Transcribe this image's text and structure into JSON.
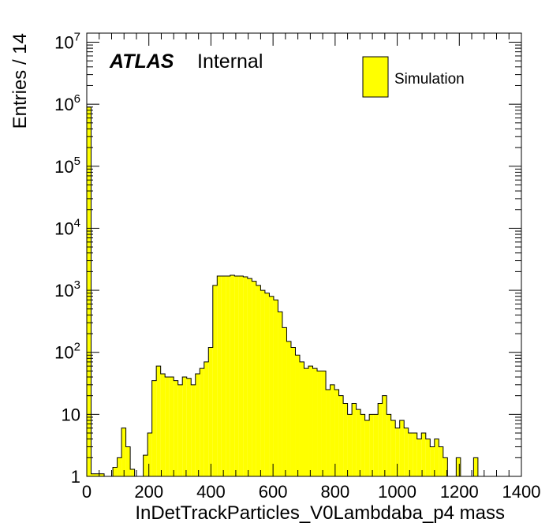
{
  "chart_data": {
    "type": "bar",
    "title": "",
    "xlabel": "InDetTrackParticles_V0Lambdaba_p4 mass",
    "ylabel": "Entries / 14",
    "xlim": [
      0,
      1400
    ],
    "ylim": [
      1,
      14000000
    ],
    "log_y": true,
    "grid": false,
    "legend_position": "top-right",
    "label_atlas": "ATLAS",
    "label_internal": "Internal",
    "bin_width": 14,
    "x_ticks": [
      "0",
      "200",
      "400",
      "600",
      "800",
      "1000",
      "1200",
      "1400"
    ],
    "x_tick_values": [
      0,
      200,
      400,
      600,
      800,
      1000,
      1200,
      1400
    ],
    "y_ticks": [
      {
        "value": 1,
        "base": "1",
        "exp": ""
      },
      {
        "value": 10,
        "base": "10",
        "exp": ""
      },
      {
        "value": 100,
        "base": "10",
        "exp": "2"
      },
      {
        "value": 1000,
        "base": "10",
        "exp": "3"
      },
      {
        "value": 10000,
        "base": "10",
        "exp": "4"
      },
      {
        "value": 100000,
        "base": "10",
        "exp": "5"
      },
      {
        "value": 1000000,
        "base": "10",
        "exp": "6"
      },
      {
        "value": 10000000,
        "base": "10",
        "exp": "7"
      }
    ],
    "series": [
      {
        "name": "Simulation",
        "color": "#ffff00",
        "edge_color": "#000000",
        "values": [
          900000,
          1.1,
          1.1,
          1.1,
          0,
          0,
          1.4,
          2,
          6,
          3,
          1.3,
          1,
          0,
          2.2,
          5,
          35,
          60,
          45,
          40,
          40,
          35,
          30,
          40,
          38,
          30,
          45,
          55,
          70,
          120,
          1200,
          1700,
          1700,
          1700,
          1750,
          1700,
          1700,
          1650,
          1550,
          1400,
          1200,
          1000,
          900,
          800,
          700,
          450,
          250,
          150,
          120,
          90,
          70,
          55,
          60,
          55,
          50,
          50,
          25,
          30,
          25,
          20,
          15,
          10,
          15,
          12,
          10,
          8,
          10,
          10,
          15,
          20,
          10,
          8,
          6,
          8,
          6,
          5,
          5,
          4,
          5,
          4,
          3,
          4,
          3,
          2,
          1,
          0,
          2,
          1,
          1,
          0,
          2,
          0,
          0,
          0,
          0,
          0,
          0,
          0,
          0,
          0,
          0
        ]
      }
    ]
  }
}
